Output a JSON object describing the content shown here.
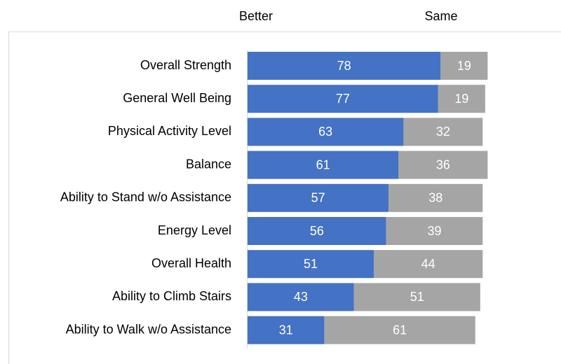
{
  "chart_data": {
    "type": "stacked_bar_horizontal",
    "categories": [
      "Overall Strength",
      "General Well Being",
      "Physical Activity Level",
      "Balance",
      "Ability to Stand w/o Assistance",
      "Energy Level",
      "Overall Health",
      "Ability to Climb Stairs",
      "Ability to Walk w/o Assistance"
    ],
    "series": [
      {
        "name": "Better",
        "color": "#4472c4",
        "values": [
          78,
          77,
          63,
          61,
          57,
          56,
          51,
          43,
          31
        ]
      },
      {
        "name": "Same",
        "color": "#a5a5a5",
        "values": [
          19,
          19,
          32,
          36,
          38,
          39,
          44,
          51,
          61
        ]
      }
    ],
    "xlim": [
      0,
      100
    ],
    "legend": "top"
  }
}
